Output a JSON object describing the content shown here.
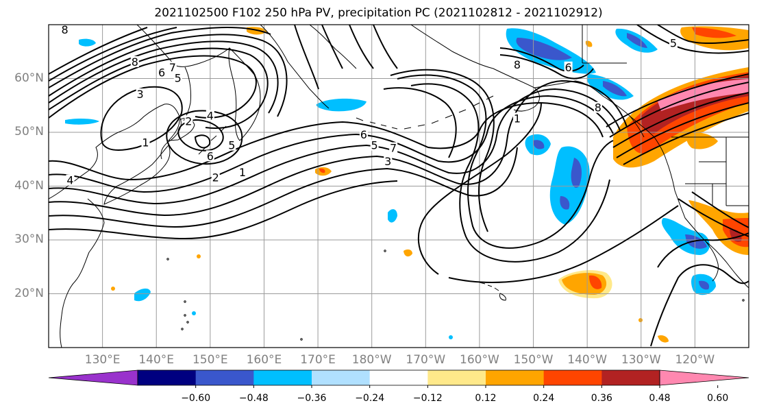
{
  "title": "2021102500 F102 250 hPa PV, precipitation PC (2021102812 - 2021102912)",
  "map": {
    "lat_labels": [
      {
        "text": "60°N",
        "lat": 60
      },
      {
        "text": "50°N",
        "lat": 50
      },
      {
        "text": "40°N",
        "lat": 40
      },
      {
        "text": "30°N",
        "lat": 30
      },
      {
        "text": "20°N",
        "lat": 20
      }
    ],
    "lon_labels": [
      {
        "text": "130°E",
        "lon": 130
      },
      {
        "text": "140°E",
        "lon": 140
      },
      {
        "text": "150°E",
        "lon": 150
      },
      {
        "text": "160°E",
        "lon": 160
      },
      {
        "text": "170°E",
        "lon": 170
      },
      {
        "text": "180°W",
        "lon": 180
      },
      {
        "text": "170°W",
        "lon": 190
      },
      {
        "text": "160°W",
        "lon": 200
      },
      {
        "text": "150°W",
        "lon": 210
      },
      {
        "text": "140°W",
        "lon": 220
      },
      {
        "text": "130°W",
        "lon": 230
      },
      {
        "text": "120°W",
        "lon": 240
      }
    ],
    "extent": {
      "lon_min": 120,
      "lon_max": 250,
      "lat_min": 10,
      "lat_max": 70
    },
    "contour_labels": [
      {
        "text": "8",
        "lon": 123,
        "lat": 69
      },
      {
        "text": "8",
        "lon": 136,
        "lat": 63
      },
      {
        "text": "7",
        "lon": 143,
        "lat": 62
      },
      {
        "text": "6",
        "lon": 141,
        "lat": 61
      },
      {
        "text": "5",
        "lon": 144,
        "lat": 60
      },
      {
        "text": "3",
        "lon": 137,
        "lat": 57
      },
      {
        "text": "2",
        "lon": 146,
        "lat": 52
      },
      {
        "text": "4",
        "lon": 150,
        "lat": 53
      },
      {
        "text": "1",
        "lon": 138,
        "lat": 48
      },
      {
        "text": "5",
        "lon": 154,
        "lat": 47.5
      },
      {
        "text": "6",
        "lon": 150,
        "lat": 45.5
      },
      {
        "text": "2",
        "lon": 151,
        "lat": 41.5
      },
      {
        "text": "1",
        "lon": 156,
        "lat": 42.5
      },
      {
        "text": "4",
        "lon": 124,
        "lat": 41
      },
      {
        "text": "6",
        "lon": 178.5,
        "lat": 49.5
      },
      {
        "text": "5",
        "lon": 180.5,
        "lat": 47.5
      },
      {
        "text": "7",
        "lon": 184,
        "lat": 47
      },
      {
        "text": "3",
        "lon": 183,
        "lat": 44.5
      },
      {
        "text": "8",
        "lon": 207,
        "lat": 62.5
      },
      {
        "text": "6",
        "lon": 216.5,
        "lat": 62
      },
      {
        "text": "1",
        "lon": 207,
        "lat": 52.5
      },
      {
        "text": "8",
        "lon": 222,
        "lat": 54.5
      },
      {
        "text": "5",
        "lon": 236,
        "lat": 66.5
      }
    ]
  },
  "colorbar": {
    "colors": [
      "#9932cc",
      "#000080",
      "#3a57cc",
      "#00bfff",
      "#b0e0ff",
      "#ffffff",
      "#ffe98a",
      "#ffa500",
      "#ff4500",
      "#b22222",
      "#ff88b0"
    ],
    "levels": [
      "−0.60",
      "−0.48",
      "−0.36",
      "−0.24",
      "−0.12",
      "0.12",
      "0.24",
      "0.36",
      "0.48",
      "0.60"
    ]
  }
}
